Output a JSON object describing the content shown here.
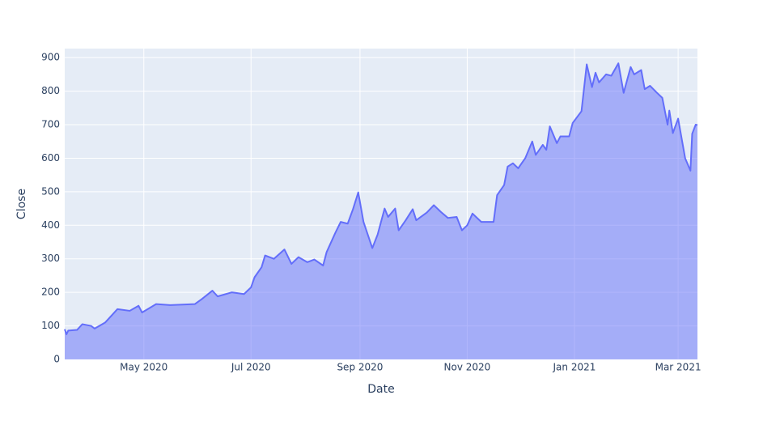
{
  "chart_data": {
    "type": "area",
    "x_label": "Date",
    "y_label": "Close",
    "color": "#636efa",
    "fill": "rgba(99,110,250,0.5)",
    "grid": true,
    "xlim": [
      "2020-03-17",
      "2021-03-12"
    ],
    "xticks": [
      {
        "value": "2020-05-01",
        "label": "May 2020"
      },
      {
        "value": "2020-07-01",
        "label": "Jul 2020"
      },
      {
        "value": "2020-09-01",
        "label": "Sep 2020"
      },
      {
        "value": "2020-11-01",
        "label": "Nov 2020"
      },
      {
        "value": "2021-01-01",
        "label": "Jan 2021"
      },
      {
        "value": "2021-03-01",
        "label": "Mar 2021"
      }
    ],
    "ylim": [
      0,
      927
    ],
    "yticks": [
      0,
      100,
      200,
      300,
      400,
      500,
      600,
      700,
      800,
      900
    ],
    "x": [
      "2020-03-17",
      "2020-03-18",
      "2020-03-19",
      "2020-03-24",
      "2020-03-27",
      "2020-04-01",
      "2020-04-03",
      "2020-04-09",
      "2020-04-16",
      "2020-04-23",
      "2020-04-28",
      "2020-04-30",
      "2020-05-08",
      "2020-05-16",
      "2020-05-30",
      "2020-06-03",
      "2020-06-09",
      "2020-06-12",
      "2020-06-20",
      "2020-06-27",
      "2020-07-01",
      "2020-07-03",
      "2020-07-07",
      "2020-07-09",
      "2020-07-14",
      "2020-07-20",
      "2020-07-24",
      "2020-07-28",
      "2020-08-02",
      "2020-08-06",
      "2020-08-11",
      "2020-08-13",
      "2020-08-18",
      "2020-08-21",
      "2020-08-25",
      "2020-08-28",
      "2020-08-31",
      "2020-09-03",
      "2020-09-08",
      "2020-09-11",
      "2020-09-15",
      "2020-09-17",
      "2020-09-21",
      "2020-09-23",
      "2020-09-27",
      "2020-10-01",
      "2020-10-03",
      "2020-10-09",
      "2020-10-13",
      "2020-10-17",
      "2020-10-21",
      "2020-10-26",
      "2020-10-29",
      "2020-11-01",
      "2020-11-04",
      "2020-11-09",
      "2020-11-16",
      "2020-11-18",
      "2020-11-22",
      "2020-11-24",
      "2020-11-27",
      "2020-11-30",
      "2020-12-04",
      "2020-12-08",
      "2020-12-10",
      "2020-12-14",
      "2020-12-16",
      "2020-12-18",
      "2020-12-22",
      "2020-12-24",
      "2020-12-29",
      "2020-12-31",
      "2021-01-05",
      "2021-01-08",
      "2021-01-11",
      "2021-01-13",
      "2021-01-15",
      "2021-01-19",
      "2021-01-22",
      "2021-01-26",
      "2021-01-29",
      "2021-02-02",
      "2021-02-04",
      "2021-02-08",
      "2021-02-10",
      "2021-02-13",
      "2021-02-17",
      "2021-02-20",
      "2021-02-23",
      "2021-02-24",
      "2021-02-26",
      "2021-03-01",
      "2021-03-05",
      "2021-03-08",
      "2021-03-09",
      "2021-03-11",
      "2021-03-12"
    ],
    "values": [
      90,
      75,
      86,
      88,
      105,
      100,
      92,
      110,
      150,
      145,
      160,
      140,
      165,
      162,
      165,
      180,
      205,
      188,
      200,
      195,
      215,
      245,
      275,
      310,
      300,
      328,
      285,
      305,
      290,
      298,
      280,
      320,
      378,
      410,
      405,
      448,
      498,
      410,
      332,
      372,
      450,
      425,
      450,
      385,
      415,
      448,
      415,
      438,
      460,
      440,
      422,
      425,
      385,
      400,
      435,
      410,
      410,
      490,
      520,
      575,
      585,
      570,
      600,
      650,
      610,
      640,
      625,
      695,
      645,
      665,
      665,
      705,
      740,
      880,
      812,
      855,
      826,
      850,
      846,
      883,
      795,
      872,
      850,
      863,
      806,
      816,
      795,
      780,
      700,
      742,
      675,
      718,
      600,
      563,
      673,
      700,
      699
    ]
  }
}
